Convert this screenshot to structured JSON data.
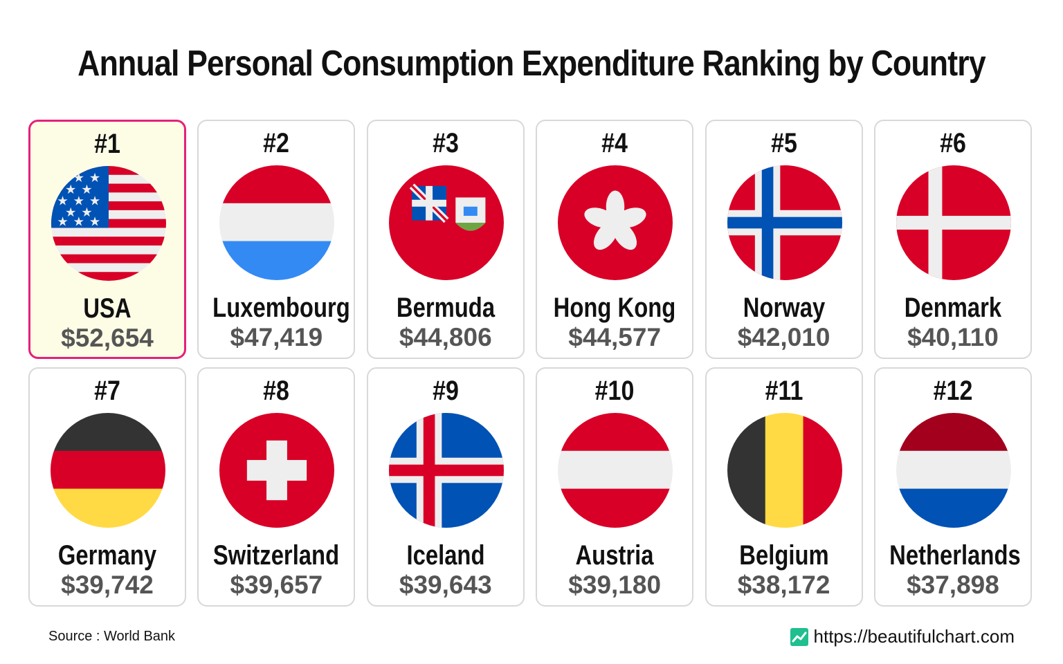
{
  "title": "Annual Personal Consumption Expenditure Ranking by Country",
  "source": "Source : World Bank",
  "website": "https://beautifulchart.com",
  "accent_color": "#e5207a",
  "highlight_background": "#fdfde6",
  "chart_data": {
    "type": "table",
    "title": "Annual Personal Consumption Expenditure Ranking by Country",
    "columns": [
      "rank",
      "country",
      "value"
    ],
    "rows": [
      {
        "rank": "#1",
        "country": "USA",
        "value": "$52,654",
        "amount": 52654,
        "flag": "flag-usa"
      },
      {
        "rank": "#2",
        "country": "Luxembourg",
        "value": "$47,419",
        "amount": 47419,
        "flag": "flag-luxembourg"
      },
      {
        "rank": "#3",
        "country": "Bermuda",
        "value": "$44,806",
        "amount": 44806,
        "flag": "flag-bermuda"
      },
      {
        "rank": "#4",
        "country": "Hong Kong",
        "value": "$44,577",
        "amount": 44577,
        "flag": "flag-hong-kong"
      },
      {
        "rank": "#5",
        "country": "Norway",
        "value": "$42,010",
        "amount": 42010,
        "flag": "flag-norway"
      },
      {
        "rank": "#6",
        "country": "Denmark",
        "value": "$40,110",
        "amount": 40110,
        "flag": "flag-denmark"
      },
      {
        "rank": "#7",
        "country": "Germany",
        "value": "$39,742",
        "amount": 39742,
        "flag": "flag-germany"
      },
      {
        "rank": "#8",
        "country": "Switzerland",
        "value": "$39,657",
        "amount": 39657,
        "flag": "flag-switzerland"
      },
      {
        "rank": "#9",
        "country": "Iceland",
        "value": "$39,643",
        "amount": 39643,
        "flag": "flag-iceland"
      },
      {
        "rank": "#10",
        "country": "Austria",
        "value": "$39,180",
        "amount": 39180,
        "flag": "flag-austria"
      },
      {
        "rank": "#11",
        "country": "Belgium",
        "value": "$38,172",
        "amount": 38172,
        "flag": "flag-belgium"
      },
      {
        "rank": "#12",
        "country": "Netherlands",
        "value": "$37,898",
        "amount": 37898,
        "flag": "flag-netherlands"
      }
    ]
  }
}
